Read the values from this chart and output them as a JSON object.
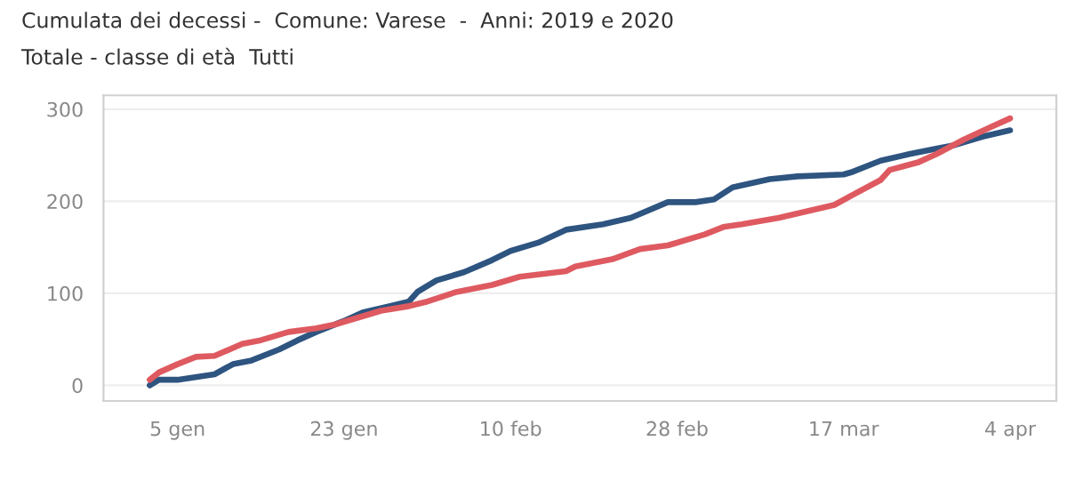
{
  "chart_data": {
    "type": "line",
    "title": "Cumulata dei decessi -  Comune: Varese  -  Anni: 2019 e 2020",
    "subtitle": "Totale - classe di età  Tutti",
    "series": [
      {
        "color": "#2e5480",
        "x": [
          "2020-01-02",
          "2020-01-03",
          "2020-01-05",
          "2020-01-09",
          "2020-01-11",
          "2020-01-13",
          "2020-01-16",
          "2020-01-18",
          "2020-01-20",
          "2020-01-23",
          "2020-01-25",
          "2020-01-28",
          "2020-01-30",
          "2020-01-31",
          "2020-02-02",
          "2020-02-05",
          "2020-02-08",
          "2020-02-10",
          "2020-02-13",
          "2020-02-16",
          "2020-02-20",
          "2020-02-23",
          "2020-02-27",
          "2020-03-01",
          "2020-03-03",
          "2020-03-05",
          "2020-03-09",
          "2020-03-12",
          "2020-03-17",
          "2020-03-18",
          "2020-03-21",
          "2020-03-24",
          "2020-03-27",
          "2020-03-29",
          "2020-04-01",
          "2020-04-04"
        ],
        "values": [
          0,
          6,
          6,
          12,
          23,
          27,
          39,
          49,
          58,
          70,
          79,
          86,
          91,
          102,
          114,
          123,
          136,
          146,
          155,
          169,
          175,
          182,
          199,
          199,
          202,
          215,
          224,
          227,
          229,
          232,
          244,
          251,
          257,
          261,
          270,
          277
        ]
      },
      {
        "color": "#de5a60",
        "x": [
          "2020-01-02",
          "2020-01-03",
          "2020-01-05",
          "2020-01-07",
          "2020-01-09",
          "2020-01-12",
          "2020-01-14",
          "2020-01-17",
          "2020-01-20",
          "2020-01-22",
          "2020-01-25",
          "2020-01-27",
          "2020-01-30",
          "2020-02-01",
          "2020-02-04",
          "2020-02-08",
          "2020-02-11",
          "2020-02-16",
          "2020-02-17",
          "2020-02-21",
          "2020-02-24",
          "2020-02-27",
          "2020-03-02",
          "2020-03-04",
          "2020-03-06",
          "2020-03-10",
          "2020-03-13",
          "2020-03-16",
          "2020-03-18",
          "2020-03-21",
          "2020-03-22",
          "2020-03-25",
          "2020-03-27",
          "2020-03-30",
          "2020-04-02",
          "2020-04-04"
        ],
        "values": [
          6,
          14,
          23,
          31,
          32,
          45,
          49,
          58,
          62,
          66,
          75,
          81,
          86,
          91,
          101,
          109,
          118,
          124,
          129,
          137,
          148,
          152,
          164,
          172,
          175,
          182,
          189,
          196,
          207,
          223,
          234,
          242,
          251,
          267,
          281,
          290
        ]
      }
    ],
    "xlim": [
      "2019-12-28",
      "2020-04-09"
    ],
    "xticks": [
      {
        "value": "2020-01-05",
        "label": "5 gen"
      },
      {
        "value": "2020-01-23",
        "label": "23 gen"
      },
      {
        "value": "2020-02-10",
        "label": "10 feb"
      },
      {
        "value": "2020-02-28",
        "label": "28 feb"
      },
      {
        "value": "2020-03-17",
        "label": "17 mar"
      },
      {
        "value": "2020-04-04",
        "label": "4 apr"
      }
    ],
    "ylim": [
      -17,
      315
    ],
    "yticks": [
      0,
      100,
      200,
      300
    ],
    "grid": "y",
    "marker": "none",
    "line_style": "solid"
  }
}
